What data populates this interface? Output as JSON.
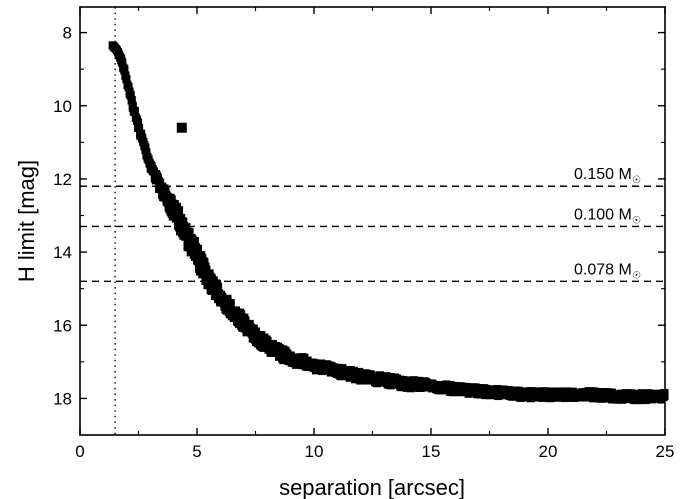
{
  "chart_data": {
    "type": "scatter",
    "title": "",
    "xlabel": "separation [arcsec]",
    "ylabel": "H limit [mag]",
    "xlim": [
      0,
      25
    ],
    "ylim": [
      19,
      7.3
    ],
    "y_inverted": true,
    "xticks": [
      0,
      5,
      10,
      15,
      20,
      25
    ],
    "yticks": [
      8,
      10,
      12,
      14,
      16,
      18
    ],
    "x_minor_step": 2.5,
    "y_minor_step": 1,
    "grid": false,
    "curve": {
      "x": [
        1.4,
        1.6,
        1.8,
        2.0,
        2.2,
        2.4,
        2.6,
        2.8,
        3.0,
        3.2,
        3.5,
        3.8,
        4.1,
        4.4,
        4.7,
        5.0,
        5.3,
        5.6,
        6.0,
        6.5,
        7.0,
        7.5,
        8.0,
        8.5,
        9.0,
        9.5,
        10,
        11,
        12,
        13,
        14,
        15,
        16,
        17,
        18,
        19,
        20,
        21,
        22,
        23,
        24,
        25
      ],
      "y": [
        8.35,
        8.5,
        8.8,
        9.3,
        9.85,
        10.35,
        10.8,
        11.2,
        11.6,
        11.9,
        12.3,
        12.65,
        12.95,
        13.3,
        13.7,
        14.1,
        14.5,
        14.85,
        15.2,
        15.6,
        15.95,
        16.3,
        16.55,
        16.75,
        16.9,
        17.0,
        17.1,
        17.25,
        17.4,
        17.5,
        17.6,
        17.65,
        17.75,
        17.8,
        17.85,
        17.9,
        17.9,
        17.9,
        17.9,
        17.95,
        17.95,
        17.95
      ],
      "scatter": [
        0,
        0,
        0.05,
        0.05,
        0.08,
        0.08,
        0.1,
        0.1,
        0.1,
        0.12,
        0.15,
        0.2,
        0.25,
        0.3,
        0.3,
        0.3,
        0.25,
        0.22,
        0.2,
        0.2,
        0.18,
        0.18,
        0.16,
        0.15,
        0.15,
        0.14,
        0.14,
        0.12,
        0.12,
        0.12,
        0.12,
        0.1,
        0.1,
        0.1,
        0.1,
        0.1,
        0.1,
        0.1,
        0.1,
        0.1,
        0.1,
        0.1
      ]
    },
    "companion": {
      "x": 4.35,
      "y": 10.6
    },
    "separation_limit": 1.5,
    "mass_limits": [
      {
        "label": "0.150 M",
        "subscript": "☉",
        "y": 12.2
      },
      {
        "label": "0.100 M",
        "subscript": "☉",
        "y": 13.3
      },
      {
        "label": "0.078 M",
        "subscript": "☉",
        "y": 14.8
      }
    ]
  }
}
